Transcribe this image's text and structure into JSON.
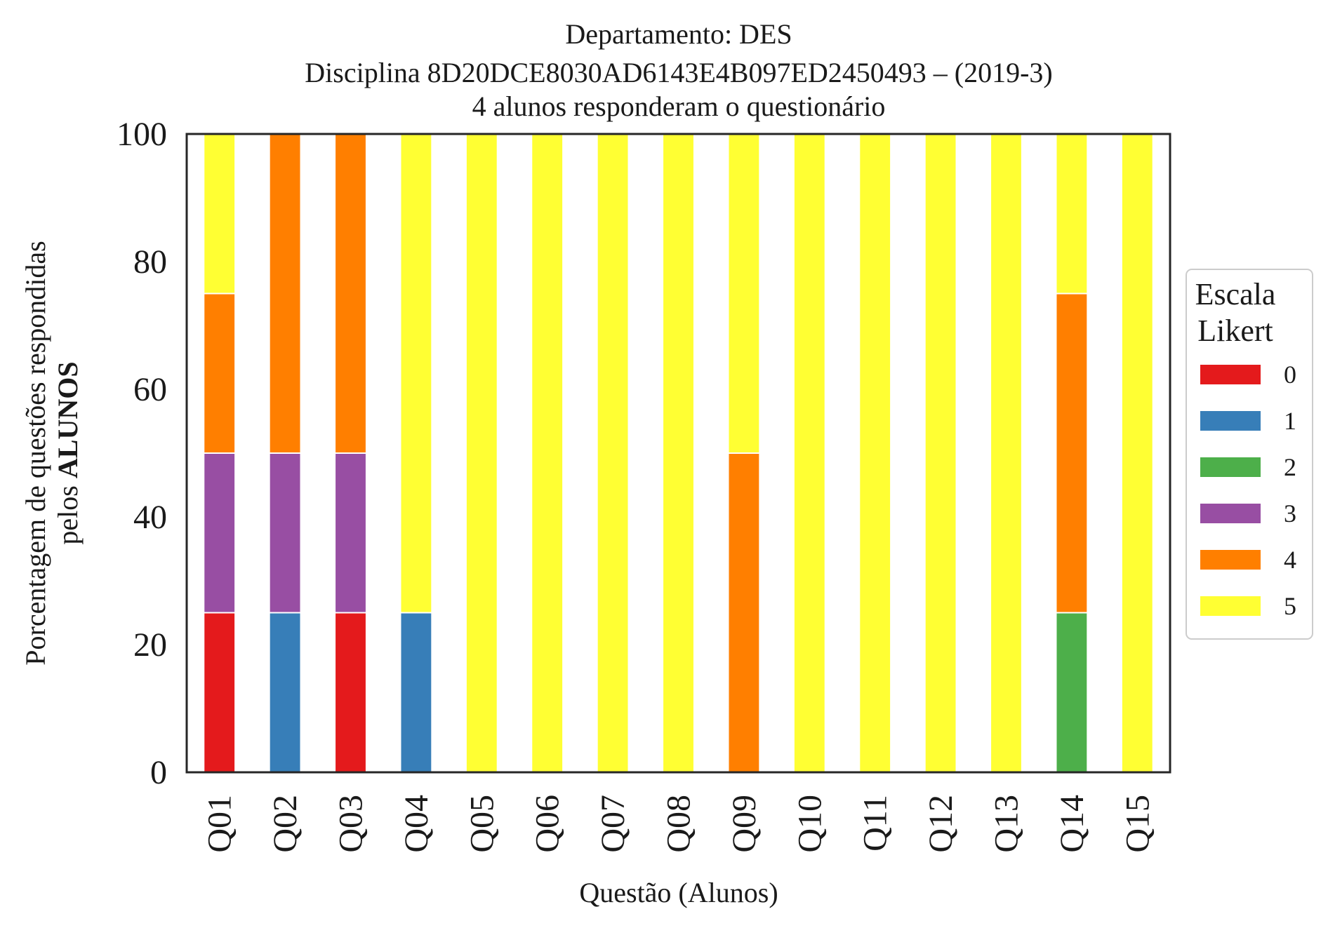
{
  "chart_data": {
    "type": "bar",
    "stacked": true,
    "title_lines": [
      "Departamento: DES",
      "Disciplina 8D20DCE8030AD6143E4B097ED2450493 – (2019-3)",
      "4 alunos responderam o questionário"
    ],
    "xlabel": "Questão (Alunos)",
    "ylabel_line1": "Porcentagem de questões respondidas",
    "ylabel_line2_prefix": "pelos ",
    "ylabel_line2_bold": "ALUNOS",
    "ylim": [
      0,
      100
    ],
    "yticks": [
      "0",
      "20",
      "40",
      "60",
      "80",
      "100"
    ],
    "categories": [
      "Q01",
      "Q02",
      "Q03",
      "Q04",
      "Q05",
      "Q06",
      "Q07",
      "Q08",
      "Q09",
      "Q10",
      "Q11",
      "Q12",
      "Q13",
      "Q14",
      "Q15"
    ],
    "series": [
      {
        "name": "0",
        "color": "#e41a1c",
        "values": [
          25,
          0,
          25,
          0,
          0,
          0,
          0,
          0,
          0,
          0,
          0,
          0,
          0,
          0,
          0
        ]
      },
      {
        "name": "1",
        "color": "#377eb8",
        "values": [
          0,
          25,
          0,
          25,
          0,
          0,
          0,
          0,
          0,
          0,
          0,
          0,
          0,
          0,
          0
        ]
      },
      {
        "name": "2",
        "color": "#4daf4a",
        "values": [
          0,
          0,
          0,
          0,
          0,
          0,
          0,
          0,
          0,
          0,
          0,
          0,
          0,
          25,
          0
        ]
      },
      {
        "name": "3",
        "color": "#984ea3",
        "values": [
          25,
          25,
          25,
          0,
          0,
          0,
          0,
          0,
          0,
          0,
          0,
          0,
          0,
          0,
          0
        ]
      },
      {
        "name": "4",
        "color": "#ff7f00",
        "values": [
          25,
          50,
          50,
          0,
          0,
          0,
          0,
          0,
          50,
          0,
          0,
          0,
          0,
          50,
          0
        ]
      },
      {
        "name": "5",
        "color": "#ffff33",
        "values": [
          25,
          0,
          0,
          75,
          100,
          100,
          100,
          100,
          50,
          100,
          100,
          100,
          100,
          25,
          100
        ]
      }
    ],
    "legend": {
      "title_lines": [
        "Escala",
        "Likert"
      ],
      "placement": "center-right, outside plot"
    }
  }
}
